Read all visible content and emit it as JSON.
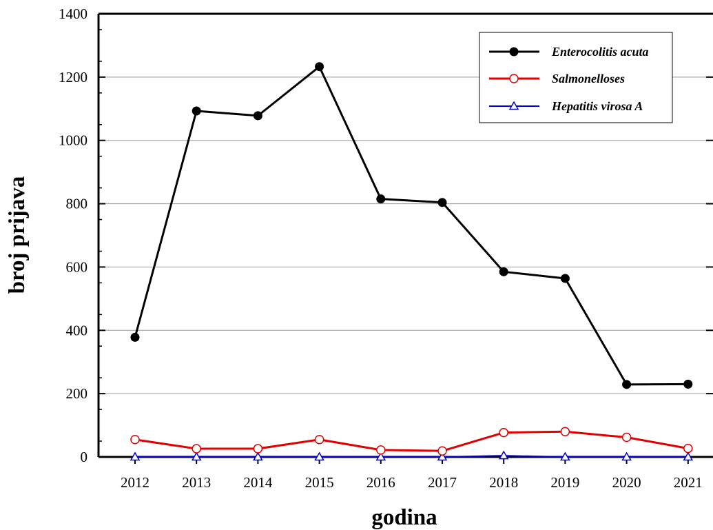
{
  "chart_data": {
    "type": "line",
    "title": "",
    "xlabel": "godina",
    "ylabel": "broj prijava",
    "categories": [
      "2012",
      "2013",
      "2014",
      "2015",
      "2016",
      "2017",
      "2018",
      "2019",
      "2020",
      "2021"
    ],
    "ylim": [
      0,
      1400
    ],
    "yticks": [
      "0",
      "200",
      "400",
      "600",
      "800",
      "1000",
      "1200",
      "1400"
    ],
    "grid": "horizontal",
    "legend_position": "top-right",
    "series": [
      {
        "name": "Enterocolitis acuta",
        "color": "#000000",
        "marker": "filled-circle",
        "values": [
          378,
          1093,
          1078,
          1233,
          815,
          804,
          585,
          564,
          229,
          230
        ]
      },
      {
        "name": "Salmonelloses",
        "color": "#e00000",
        "marker": "open-circle",
        "values": [
          55,
          26,
          26,
          55,
          22,
          19,
          77,
          80,
          62,
          27
        ]
      },
      {
        "name": "Hepatitis virosa A",
        "color": "#0000cc",
        "marker": "open-triangle",
        "values": [
          0,
          0,
          0,
          0,
          0,
          0,
          4,
          0,
          0,
          0
        ]
      }
    ]
  }
}
